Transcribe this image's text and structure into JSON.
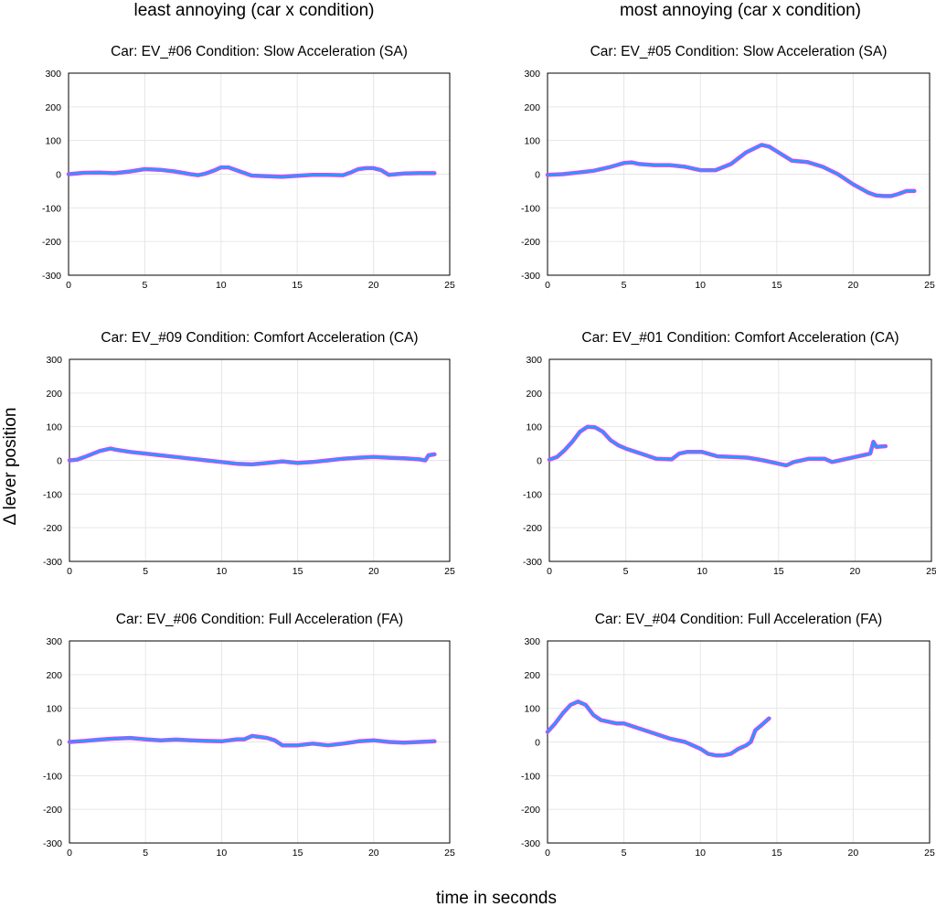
{
  "figure": {
    "column_titles": [
      "least annoying (car x condition)",
      "most annoying (car x condition)"
    ],
    "ylabel": "Δ  lever position",
    "xlabel": "time in seconds"
  },
  "colors": {
    "line_outer": "#ff33ee",
    "line_inner": "#1aa0ff",
    "grid": "#e6e6e6"
  },
  "chart_data": [
    {
      "type": "line",
      "title": "Car: EV_#06   Condition: Slow Acceleration (SA)",
      "xlim": [
        0,
        25
      ],
      "ylim": [
        -300,
        300
      ],
      "xticks": [
        0,
        5,
        10,
        15,
        20,
        25
      ],
      "yticks": [
        300,
        200,
        100,
        0,
        -100,
        -200,
        -300
      ],
      "grid": true,
      "series": [
        {
          "name": "Δ lever position",
          "x": [
            0,
            1,
            2,
            3,
            4,
            5,
            6,
            7,
            8,
            8.5,
            9,
            9.5,
            10,
            10.5,
            11,
            12,
            13,
            14,
            15,
            16,
            17,
            18,
            18.5,
            19,
            19.5,
            20,
            20.5,
            21,
            22,
            23,
            24
          ],
          "y": [
            0,
            4,
            5,
            3,
            8,
            15,
            13,
            8,
            0,
            -3,
            2,
            10,
            20,
            20,
            12,
            -4,
            -6,
            -8,
            -5,
            -2,
            -2,
            -3,
            5,
            15,
            18,
            18,
            12,
            -2,
            2,
            3,
            3
          ]
        }
      ]
    },
    {
      "type": "line",
      "title": "Car: EV_#05   Condition: Slow Acceleration (SA)",
      "xlim": [
        0,
        25
      ],
      "ylim": [
        -300,
        300
      ],
      "xticks": [
        0,
        5,
        10,
        15,
        20,
        25
      ],
      "yticks": [
        300,
        200,
        100,
        0,
        -100,
        -200,
        -300
      ],
      "grid": true,
      "series": [
        {
          "name": "Δ lever position",
          "x": [
            0,
            1,
            2,
            3,
            4,
            5,
            5.5,
            6,
            7,
            8,
            9,
            10,
            11,
            12,
            13,
            14,
            14.5,
            15,
            16,
            17,
            18,
            19,
            20,
            21,
            21.5,
            22,
            22.5,
            23,
            23.5,
            24
          ],
          "y": [
            -2,
            0,
            5,
            10,
            20,
            33,
            35,
            30,
            27,
            27,
            22,
            12,
            12,
            30,
            65,
            87,
            82,
            68,
            40,
            36,
            22,
            0,
            -30,
            -55,
            -63,
            -65,
            -65,
            -58,
            -50,
            -50
          ]
        }
      ]
    },
    {
      "type": "line",
      "title": "Car: EV_#09   Condition: Comfort Acceleration (CA)",
      "xlim": [
        0,
        25
      ],
      "ylim": [
        -300,
        300
      ],
      "xticks": [
        0,
        5,
        10,
        15,
        20,
        25
      ],
      "yticks": [
        300,
        200,
        100,
        0,
        -100,
        -200,
        -300
      ],
      "grid": true,
      "series": [
        {
          "name": "Δ lever position",
          "x": [
            0,
            0.5,
            1,
            2,
            2.7,
            3,
            4,
            5,
            6,
            7,
            8,
            9,
            10,
            11,
            12,
            13,
            14,
            15,
            16,
            17,
            18,
            19,
            20,
            21,
            22,
            23,
            23.4,
            23.6,
            24
          ],
          "y": [
            0,
            2,
            10,
            28,
            35,
            32,
            25,
            20,
            15,
            10,
            5,
            0,
            -5,
            -10,
            -12,
            -8,
            -3,
            -8,
            -5,
            0,
            5,
            8,
            10,
            8,
            6,
            3,
            0,
            15,
            18
          ]
        }
      ]
    },
    {
      "type": "line",
      "title": "Car: EV_#01   Condition: Comfort Acceleration (CA)",
      "xlim": [
        0,
        25
      ],
      "ylim": [
        -300,
        300
      ],
      "xticks": [
        0,
        5,
        10,
        15,
        20,
        25
      ],
      "yticks": [
        300,
        200,
        100,
        0,
        -100,
        -200,
        -300
      ],
      "grid": true,
      "series": [
        {
          "name": "Δ lever position",
          "x": [
            0,
            0.5,
            1,
            1.5,
            2,
            2.5,
            3,
            3.5,
            4,
            4.5,
            5,
            6,
            7,
            8,
            8.5,
            9,
            10,
            11,
            12,
            13,
            14,
            15,
            15.5,
            16,
            17,
            18,
            18.5,
            19,
            20,
            20.5,
            21,
            21.2,
            21.4,
            22
          ],
          "y": [
            2,
            10,
            30,
            55,
            85,
            100,
            98,
            85,
            60,
            45,
            35,
            20,
            5,
            3,
            20,
            25,
            25,
            12,
            10,
            8,
            0,
            -10,
            -15,
            -5,
            5,
            5,
            -5,
            0,
            10,
            15,
            20,
            55,
            40,
            42
          ]
        }
      ]
    },
    {
      "type": "line",
      "title": "Car: EV_#06   Condition: Full Acceleration (FA)",
      "xlim": [
        0,
        25
      ],
      "ylim": [
        -300,
        300
      ],
      "xticks": [
        0,
        5,
        10,
        15,
        20,
        25
      ],
      "yticks": [
        300,
        200,
        100,
        0,
        -100,
        -200,
        -300
      ],
      "grid": true,
      "series": [
        {
          "name": "Δ lever position",
          "x": [
            0,
            1,
            2,
            3,
            4,
            5,
            6,
            7,
            8,
            9,
            10,
            11,
            11.5,
            12,
            13,
            13.5,
            14,
            15,
            16,
            17,
            18,
            19,
            20,
            21,
            22,
            23,
            24
          ],
          "y": [
            0,
            3,
            7,
            10,
            12,
            8,
            5,
            7,
            5,
            3,
            2,
            8,
            8,
            18,
            12,
            5,
            -10,
            -10,
            -5,
            -10,
            -5,
            2,
            5,
            0,
            -2,
            0,
            2
          ]
        }
      ]
    },
    {
      "type": "line",
      "title": "Car: EV_#04   Condition: Full Acceleration (FA)",
      "xlim": [
        0,
        25
      ],
      "ylim": [
        -300,
        300
      ],
      "xticks": [
        0,
        5,
        10,
        15,
        20,
        25
      ],
      "yticks": [
        300,
        200,
        100,
        0,
        -100,
        -200,
        -300
      ],
      "grid": true,
      "series": [
        {
          "name": "Δ lever position",
          "x": [
            0,
            0.5,
            1,
            1.5,
            2,
            2.5,
            3,
            3.5,
            4,
            4.5,
            5,
            6,
            7,
            8,
            9,
            10,
            10.5,
            11,
            11.5,
            12,
            12.5,
            13,
            13.3,
            13.6,
            14,
            14.5
          ],
          "y": [
            30,
            55,
            85,
            110,
            120,
            110,
            80,
            65,
            60,
            55,
            55,
            40,
            25,
            10,
            0,
            -20,
            -35,
            -40,
            -40,
            -35,
            -20,
            -10,
            0,
            35,
            50,
            70
          ]
        }
      ]
    }
  ]
}
